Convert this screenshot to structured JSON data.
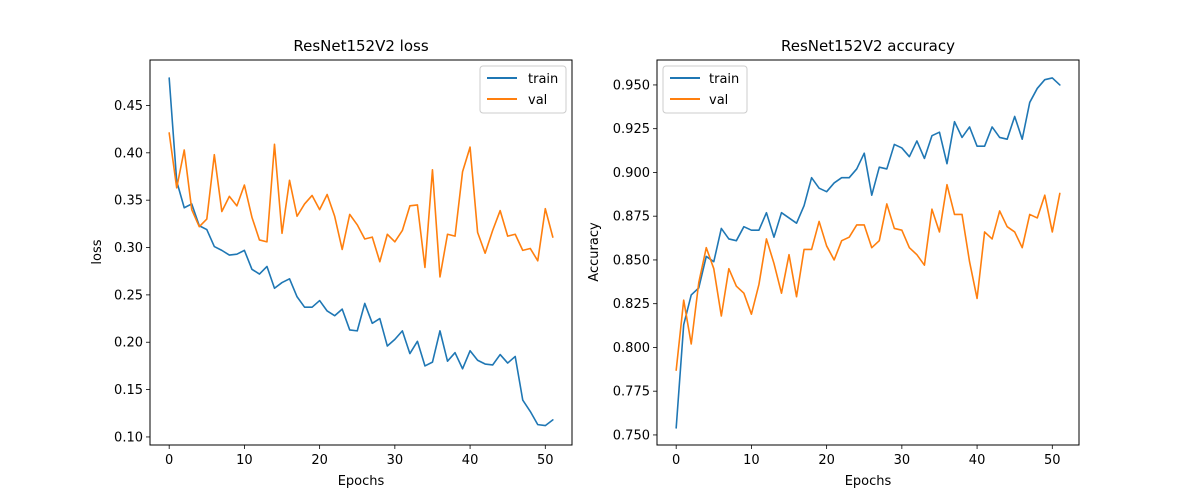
{
  "chart_data": [
    {
      "type": "line",
      "title": "ResNet152V2 loss",
      "xlabel": "Epochs",
      "ylabel": "loss",
      "xlim": [
        -2.55,
        53.55
      ],
      "ylim": [
        0.0915,
        0.498
      ],
      "xticks": [
        0,
        10,
        20,
        30,
        40,
        50
      ],
      "yticks": [
        0.1,
        0.15,
        0.2,
        0.25,
        0.3,
        0.35,
        0.4,
        0.45
      ],
      "ytick_labels": [
        "0.10",
        "0.15",
        "0.20",
        "0.25",
        "0.30",
        "0.35",
        "0.40",
        "0.45"
      ],
      "legend_position": "top-right",
      "grid": false,
      "x": [
        0,
        1,
        2,
        3,
        4,
        5,
        6,
        7,
        8,
        9,
        10,
        11,
        12,
        13,
        14,
        15,
        16,
        17,
        18,
        19,
        20,
        21,
        22,
        23,
        24,
        25,
        26,
        27,
        28,
        29,
        30,
        31,
        32,
        33,
        34,
        35,
        36,
        37,
        38,
        39,
        40,
        41,
        42,
        43,
        44,
        45,
        46,
        47,
        48,
        49,
        50,
        51
      ],
      "series": [
        {
          "name": "train",
          "color": "#1f77b4",
          "values": [
            0.479,
            0.37,
            0.342,
            0.346,
            0.323,
            0.319,
            0.301,
            0.297,
            0.292,
            0.293,
            0.297,
            0.277,
            0.272,
            0.28,
            0.257,
            0.263,
            0.267,
            0.248,
            0.237,
            0.237,
            0.244,
            0.233,
            0.228,
            0.235,
            0.213,
            0.212,
            0.241,
            0.22,
            0.225,
            0.196,
            0.203,
            0.212,
            0.188,
            0.201,
            0.175,
            0.179,
            0.212,
            0.18,
            0.189,
            0.172,
            0.191,
            0.181,
            0.177,
            0.176,
            0.187,
            0.178,
            0.185,
            0.139,
            0.127,
            0.113,
            0.112,
            0.118
          ]
        },
        {
          "name": "val",
          "color": "#ff7f0e",
          "values": [
            0.421,
            0.363,
            0.403,
            0.34,
            0.322,
            0.33,
            0.398,
            0.338,
            0.354,
            0.344,
            0.366,
            0.332,
            0.308,
            0.306,
            0.409,
            0.315,
            0.371,
            0.333,
            0.346,
            0.355,
            0.34,
            0.356,
            0.333,
            0.298,
            0.335,
            0.324,
            0.309,
            0.311,
            0.285,
            0.314,
            0.306,
            0.318,
            0.344,
            0.345,
            0.279,
            0.382,
            0.269,
            0.314,
            0.312,
            0.38,
            0.406,
            0.316,
            0.294,
            0.318,
            0.339,
            0.312,
            0.314,
            0.297,
            0.299,
            0.286,
            0.341,
            0.311
          ]
        }
      ]
    },
    {
      "type": "line",
      "title": "ResNet152V2 accuracy",
      "xlabel": "Epochs",
      "ylabel": "Accuracy",
      "xlim": [
        -2.55,
        53.55
      ],
      "ylim": [
        0.74425,
        0.96425
      ],
      "xticks": [
        0,
        10,
        20,
        30,
        40,
        50
      ],
      "yticks": [
        0.75,
        0.775,
        0.8,
        0.825,
        0.85,
        0.875,
        0.9,
        0.925,
        0.95
      ],
      "ytick_labels": [
        "0.750",
        "0.775",
        "0.800",
        "0.825",
        "0.850",
        "0.875",
        "0.900",
        "0.925",
        "0.950"
      ],
      "legend_position": "top-left",
      "grid": false,
      "x": [
        0,
        1,
        2,
        3,
        4,
        5,
        6,
        7,
        8,
        9,
        10,
        11,
        12,
        13,
        14,
        15,
        16,
        17,
        18,
        19,
        20,
        21,
        22,
        23,
        24,
        25,
        26,
        27,
        28,
        29,
        30,
        31,
        32,
        33,
        34,
        35,
        36,
        37,
        38,
        39,
        40,
        41,
        42,
        43,
        44,
        45,
        46,
        47,
        48,
        49,
        50,
        51
      ],
      "series": [
        {
          "name": "train",
          "color": "#1f77b4",
          "values": [
            0.754,
            0.813,
            0.83,
            0.834,
            0.852,
            0.849,
            0.868,
            0.862,
            0.861,
            0.869,
            0.867,
            0.867,
            0.877,
            0.863,
            0.877,
            0.874,
            0.871,
            0.881,
            0.897,
            0.891,
            0.889,
            0.894,
            0.897,
            0.897,
            0.902,
            0.911,
            0.887,
            0.903,
            0.902,
            0.916,
            0.914,
            0.909,
            0.918,
            0.908,
            0.921,
            0.923,
            0.905,
            0.929,
            0.92,
            0.926,
            0.915,
            0.915,
            0.926,
            0.92,
            0.919,
            0.932,
            0.919,
            0.94,
            0.948,
            0.953,
            0.954,
            0.95
          ]
        },
        {
          "name": "val",
          "color": "#ff7f0e",
          "values": [
            0.787,
            0.827,
            0.802,
            0.837,
            0.857,
            0.845,
            0.818,
            0.845,
            0.835,
            0.831,
            0.819,
            0.836,
            0.862,
            0.848,
            0.831,
            0.853,
            0.829,
            0.856,
            0.856,
            0.872,
            0.858,
            0.85,
            0.861,
            0.863,
            0.87,
            0.87,
            0.857,
            0.861,
            0.882,
            0.868,
            0.867,
            0.857,
            0.853,
            0.847,
            0.879,
            0.866,
            0.893,
            0.876,
            0.876,
            0.849,
            0.828,
            0.866,
            0.862,
            0.878,
            0.869,
            0.866,
            0.857,
            0.876,
            0.874,
            0.887,
            0.866,
            0.888
          ]
        }
      ]
    }
  ]
}
